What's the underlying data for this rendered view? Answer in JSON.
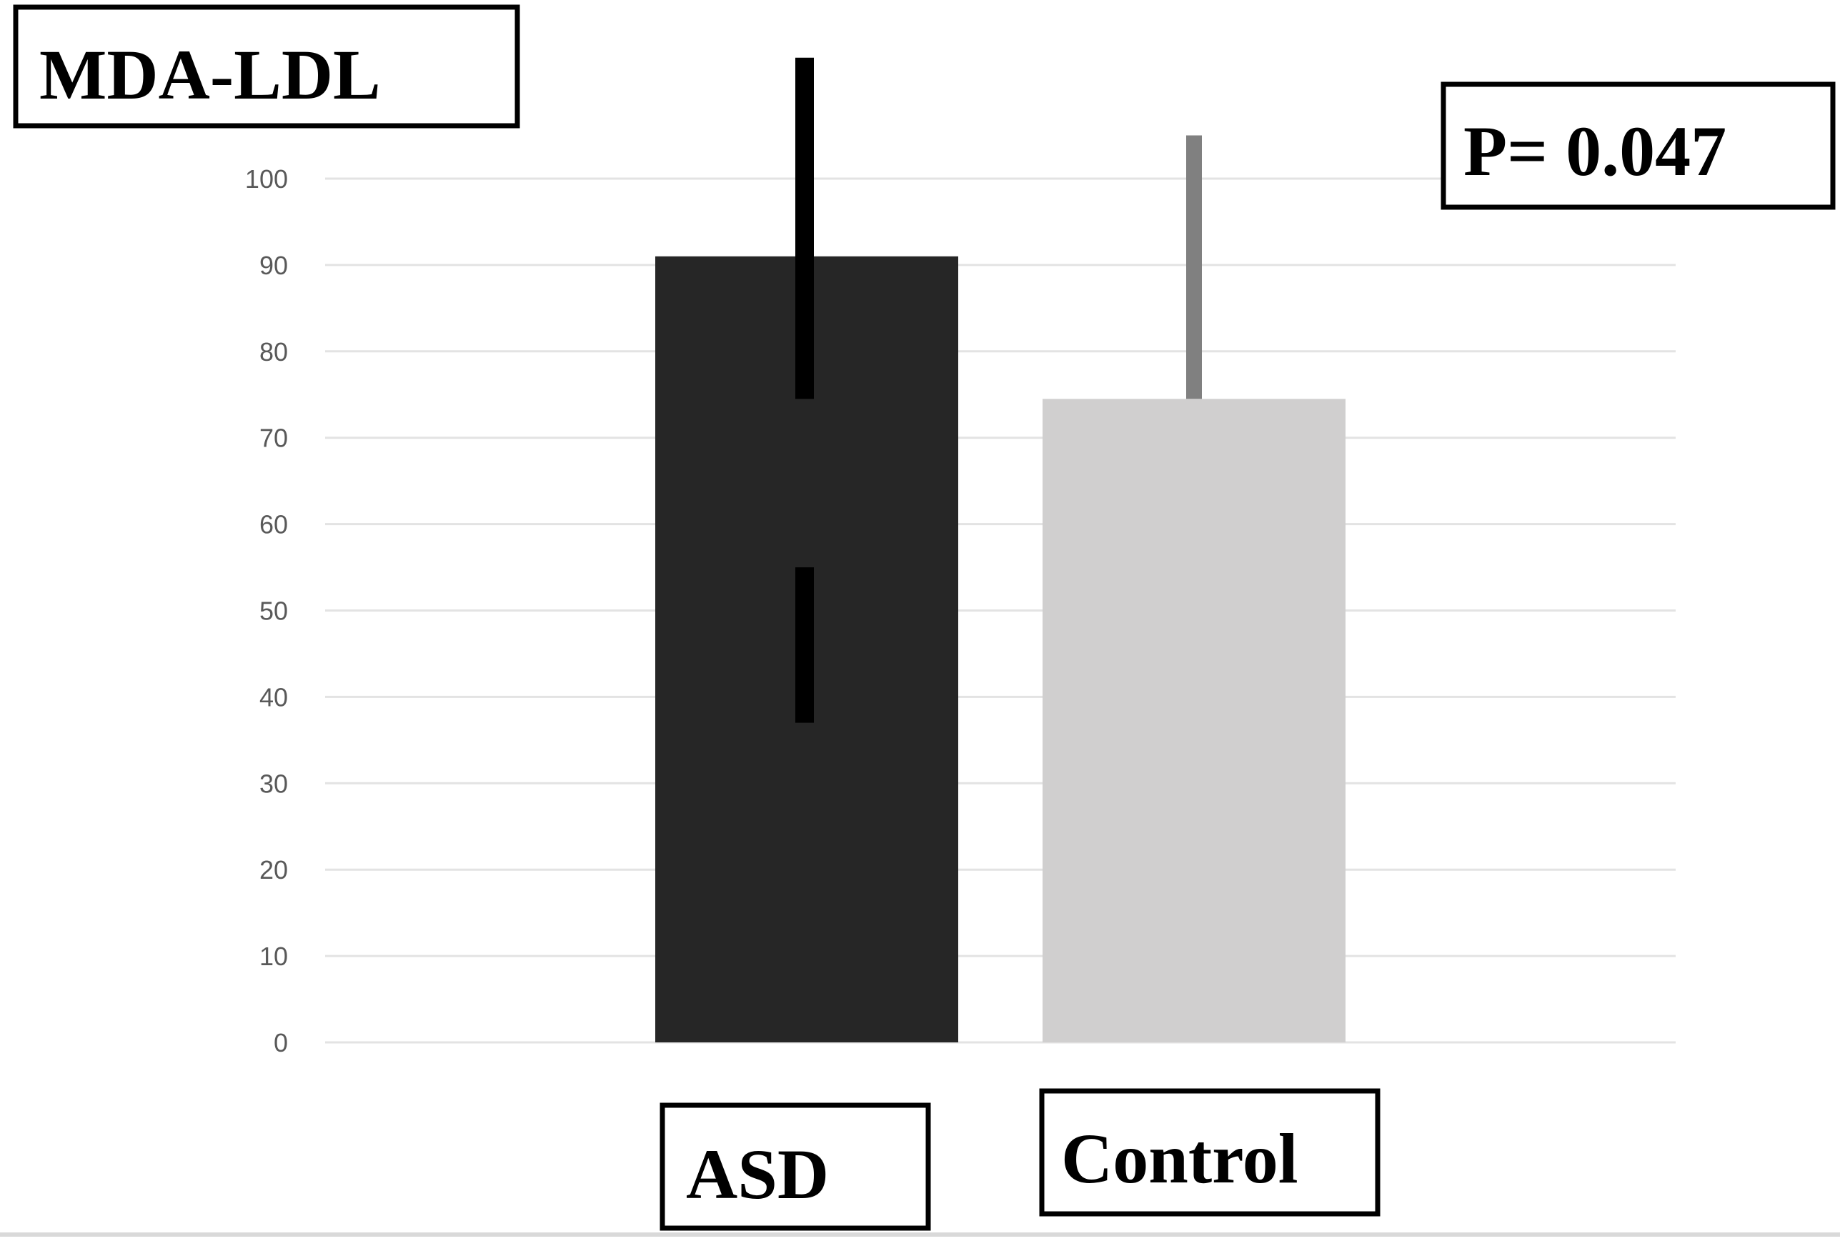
{
  "chart_data": {
    "type": "bar",
    "title": "MDA-LDL",
    "annotation": "P= 0.047",
    "categories": [
      "ASD",
      "Control"
    ],
    "values": [
      91,
      74.5
    ],
    "error_bars": [
      {
        "low": 37,
        "high": 114
      },
      {
        "low": 74.5,
        "high": 105
      }
    ],
    "ylim": [
      0,
      100
    ],
    "yticks": [
      "0",
      "10",
      "20",
      "30",
      "40",
      "50",
      "60",
      "70",
      "80",
      "90",
      "100"
    ],
    "grid": true,
    "colors": {
      "ASD": "#262626",
      "Control": "#d0cfcf",
      "asd_error": "#000000",
      "control_error": "#808080",
      "grid": "#e3e3e3"
    }
  }
}
